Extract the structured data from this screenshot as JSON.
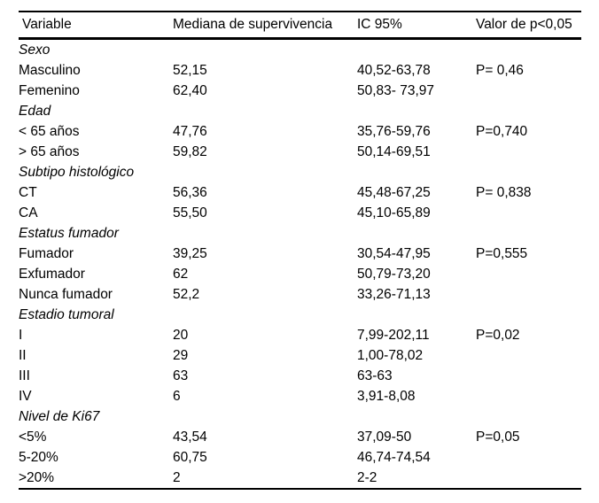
{
  "colors": {
    "background": "#ffffff",
    "text": "#000000",
    "rule": "#000000"
  },
  "table": {
    "columns": [
      "Variable",
      "Mediana de supervivencia",
      "IC 95%",
      "Valor de p<0,05"
    ],
    "sections": [
      {
        "label": "Sexo",
        "rows": [
          {
            "variable": "Masculino",
            "mediana": "52,15",
            "ic95": "40,52-63,78",
            "p": "P= 0,46"
          },
          {
            "variable": "Femenino",
            "mediana": "62,40",
            "ic95": "50,83- 73,97",
            "p": ""
          }
        ]
      },
      {
        "label": "Edad",
        "rows": [
          {
            "variable": "< 65 años",
            "mediana": "47,76",
            "ic95": "35,76-59,76",
            "p": "P=0,740"
          },
          {
            "variable": "> 65 años",
            "mediana": "59,82",
            "ic95": "50,14-69,51",
            "p": ""
          }
        ]
      },
      {
        "label": "Subtipo histológico",
        "rows": [
          {
            "variable": "CT",
            "mediana": "56,36",
            "ic95": "45,48-67,25",
            "p": "P= 0,838"
          },
          {
            "variable": "CA",
            "mediana": "55,50",
            "ic95": "45,10-65,89",
            "p": ""
          }
        ]
      },
      {
        "label": "Estatus fumador",
        "rows": [
          {
            "variable": "Fumador",
            "mediana": "39,25",
            "ic95": "30,54-47,95",
            "p": "P=0,555"
          },
          {
            "variable": "Exfumador",
            "mediana": "62",
            "ic95": "50,79-73,20",
            "p": ""
          },
          {
            "variable": "Nunca fumador",
            "mediana": "52,2",
            "ic95": "33,26-71,13",
            "p": ""
          }
        ]
      },
      {
        "label": "Estadio tumoral",
        "rows": [
          {
            "variable": "I",
            "mediana": "20",
            "ic95": "7,99-202,11",
            "p": "P=0,02"
          },
          {
            "variable": "II",
            "mediana": "29",
            "ic95": "1,00-78,02",
            "p": ""
          },
          {
            "variable": "III",
            "mediana": "63",
            "ic95": "63-63",
            "p": ""
          },
          {
            "variable": "IV",
            "mediana": "6",
            "ic95": "3,91-8,08",
            "p": ""
          }
        ]
      },
      {
        "label": "Nivel de Ki67",
        "rows": [
          {
            "variable": "<5%",
            "mediana": "43,54",
            "ic95": "37,09-50",
            "p": "P=0,05"
          },
          {
            "variable": "5-20%",
            "mediana": "60,75",
            "ic95": "46,74-74,54",
            "p": ""
          },
          {
            "variable": ">20%",
            "mediana": "2",
            "ic95": "2-2",
            "p": ""
          }
        ]
      }
    ]
  }
}
